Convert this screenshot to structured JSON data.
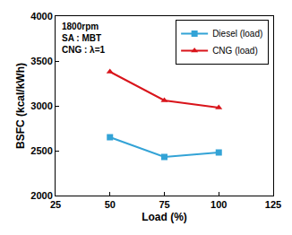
{
  "chart_data": {
    "type": "line",
    "x_label": "Load (%)",
    "y_label": "BSFC (kcal/kWh)",
    "annotations": [
      "1800rpm",
      "SA : MBT",
      "CNG : λ=1"
    ],
    "x": [
      50,
      75,
      100
    ],
    "series": [
      {
        "name": "Diesel (load)",
        "color": "#33a3d6",
        "marker": "square",
        "line_style": "solid",
        "values": [
          2650,
          2430,
          2480
        ]
      },
      {
        "name": "CNG (load)",
        "color": "#d9141b",
        "marker": "triangle-up",
        "line_style": "solid",
        "values": [
          3380,
          3060,
          2980
        ]
      }
    ],
    "xlim": [
      25,
      125
    ],
    "xticks": [
      25,
      50,
      75,
      100,
      125
    ],
    "ylim": [
      2000,
      4000
    ],
    "yticks": [
      2000,
      2500,
      3000,
      3500,
      4000
    ],
    "grid": false,
    "legend": "upper right"
  }
}
